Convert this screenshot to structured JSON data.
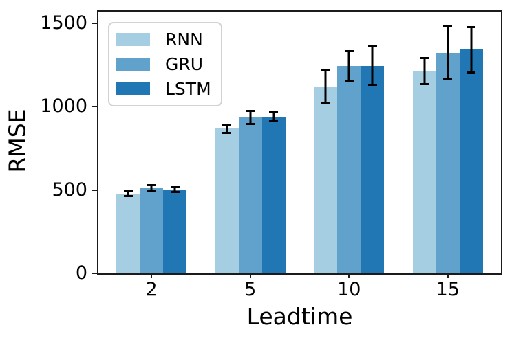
{
  "chart_data": {
    "type": "bar",
    "title": "",
    "xlabel": "Leadtime",
    "ylabel": "RMSE",
    "categories": [
      "2",
      "5",
      "10",
      "15"
    ],
    "series": [
      {
        "name": "RNN",
        "color": "#a6cee3",
        "values": [
          477,
          868,
          1120,
          1212
        ],
        "errors": [
          21,
          31,
          105,
          84
        ]
      },
      {
        "name": "GRU",
        "color": "#61a2cd",
        "values": [
          510,
          936,
          1243,
          1324
        ],
        "errors": [
          24,
          46,
          95,
          166
        ]
      },
      {
        "name": "LSTM",
        "color": "#2077b4",
        "values": [
          503,
          940,
          1245,
          1342
        ],
        "errors": [
          22,
          34,
          122,
          142
        ]
      }
    ],
    "ytick_values": [
      0,
      500,
      1000,
      1500
    ],
    "ytick_labels": [
      "0",
      "500",
      "1000",
      "1500"
    ],
    "ylim": [
      0,
      1570
    ],
    "grid": false,
    "legend_position": "upper-left",
    "axis_color": "#1b1b1b",
    "error_bar_color": "#000000",
    "background_color": "#ffffff"
  }
}
